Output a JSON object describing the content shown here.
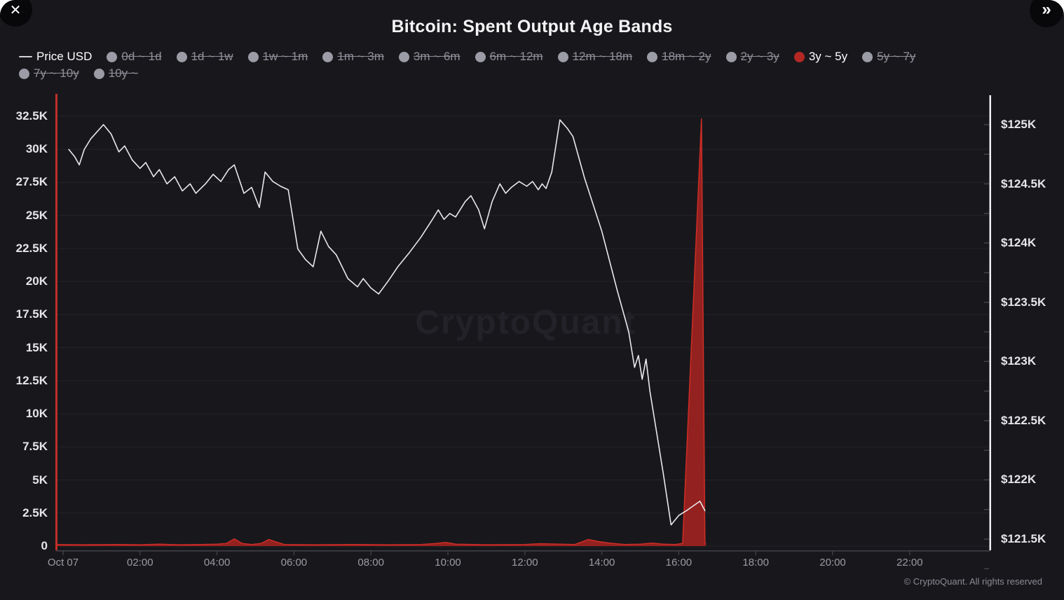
{
  "window": {
    "close_icon": "✕",
    "collapse_icon": "»"
  },
  "header": {
    "title": "Bitcoin: Spent Output Age Bands"
  },
  "legend": {
    "price": {
      "label": "Price USD",
      "active": true,
      "row": 1
    },
    "bands": [
      {
        "label": "0d ~ 1d",
        "active": false,
        "row": 1
      },
      {
        "label": "1d ~ 1w",
        "active": false,
        "row": 1
      },
      {
        "label": "1w ~ 1m",
        "active": false,
        "row": 1
      },
      {
        "label": "1m ~ 3m",
        "active": false,
        "row": 1
      },
      {
        "label": "3m ~ 6m",
        "active": false,
        "row": 1
      },
      {
        "label": "6m ~ 12m",
        "active": false,
        "row": 1
      },
      {
        "label": "12m ~ 18m",
        "active": false,
        "row": 1
      },
      {
        "label": "18m ~ 2y",
        "active": false,
        "row": 1
      },
      {
        "label": "2y ~ 3y",
        "active": false,
        "row": 1
      },
      {
        "label": "3y ~ 5y",
        "active": true,
        "row": 1
      },
      {
        "label": "5y ~ 7y",
        "active": false,
        "row": 1
      },
      {
        "label": "7y ~ 10y",
        "active": false,
        "row": 2
      },
      {
        "label": "10y ~",
        "active": false,
        "row": 2
      }
    ]
  },
  "colors": {
    "panel_bg": "#18181c",
    "accent_red": "#b32823",
    "area_fill": "#93211f",
    "area_stroke": "#cf2d26",
    "left_axis_line": "#c0302a",
    "right_axis_line": "#f2f2f4",
    "price_line": "#e9e9ec",
    "grid": "#232329",
    "tick": "#45454d",
    "x_axis_line": "#3f3f47"
  },
  "chart": {
    "watermark": "CryptoQuant",
    "copyright": "© CryptoQuant. All rights reserved",
    "left_axis": {
      "ticks": [
        {
          "value": 0,
          "label": "0"
        },
        {
          "value": 2.5,
          "label": "2.5K"
        },
        {
          "value": 5,
          "label": "5K"
        },
        {
          "value": 7.5,
          "label": "7.5K"
        },
        {
          "value": 10,
          "label": "10K"
        },
        {
          "value": 12.5,
          "label": "12.5K"
        },
        {
          "value": 15,
          "label": "15K"
        },
        {
          "value": 17.5,
          "label": "17.5K"
        },
        {
          "value": 20,
          "label": "20K"
        },
        {
          "value": 22.5,
          "label": "22.5K"
        },
        {
          "value": 25,
          "label": "25K"
        },
        {
          "value": 27.5,
          "label": "27.5K"
        },
        {
          "value": 30,
          "label": "30K"
        },
        {
          "value": 32.5,
          "label": "32.5K"
        }
      ]
    },
    "right_axis": {
      "ticks": [
        {
          "value": 121.5,
          "label": "$121.5K"
        },
        {
          "value": 122,
          "label": "$122K"
        },
        {
          "value": 122.5,
          "label": "$122.5K"
        },
        {
          "value": 123,
          "label": "$123K"
        },
        {
          "value": 123.5,
          "label": "$123.5K"
        },
        {
          "value": 124,
          "label": "$124K"
        },
        {
          "value": 124.5,
          "label": "$124.5K"
        },
        {
          "value": 125,
          "label": "$125K"
        }
      ]
    },
    "x_axis": {
      "ticks": [
        {
          "value": 0,
          "label": "Oct 07"
        },
        {
          "value": 2,
          "label": "02:00"
        },
        {
          "value": 4,
          "label": "04:00"
        },
        {
          "value": 6,
          "label": "06:00"
        },
        {
          "value": 8,
          "label": "08:00"
        },
        {
          "value": 10,
          "label": "10:00"
        },
        {
          "value": 12,
          "label": "12:00"
        },
        {
          "value": 14,
          "label": "14:00"
        },
        {
          "value": 16,
          "label": "16:00"
        },
        {
          "value": 18,
          "label": "18:00"
        },
        {
          "value": 20,
          "label": "20:00"
        },
        {
          "value": 22,
          "label": "22:00"
        }
      ]
    }
  },
  "chart_data": {
    "type": "mixed",
    "title": "Bitcoin: Spent Output Age Bands",
    "x_unit": "hours since Oct 07 00:00",
    "left_ylim": [
      0,
      32.5
    ],
    "left_unit": "K BTC spent output",
    "right_ylim": [
      121.25,
      125.25
    ],
    "right_unit": "$K",
    "grid": "horizontal",
    "legend_position": "top",
    "series": [
      {
        "name": "Price USD",
        "type": "line",
        "axis": "right",
        "points": [
          [
            0.15,
            124.79
          ],
          [
            0.3,
            124.73
          ],
          [
            0.42,
            124.66
          ],
          [
            0.55,
            124.79
          ],
          [
            0.72,
            124.88
          ],
          [
            1.05,
            125.0
          ],
          [
            1.25,
            124.92
          ],
          [
            1.45,
            124.77
          ],
          [
            1.6,
            124.82
          ],
          [
            1.8,
            124.7
          ],
          [
            2.0,
            124.63
          ],
          [
            2.15,
            124.68
          ],
          [
            2.35,
            124.56
          ],
          [
            2.5,
            124.62
          ],
          [
            2.7,
            124.5
          ],
          [
            2.9,
            124.56
          ],
          [
            3.1,
            124.44
          ],
          [
            3.3,
            124.5
          ],
          [
            3.45,
            124.42
          ],
          [
            3.7,
            124.5
          ],
          [
            3.9,
            124.58
          ],
          [
            4.1,
            124.52
          ],
          [
            4.3,
            124.62
          ],
          [
            4.45,
            124.66
          ],
          [
            4.7,
            124.42
          ],
          [
            4.9,
            124.47
          ],
          [
            5.1,
            124.3
          ],
          [
            5.25,
            124.6
          ],
          [
            5.45,
            124.52
          ],
          [
            5.65,
            124.48
          ],
          [
            5.85,
            124.45
          ],
          [
            6.1,
            123.95
          ],
          [
            6.3,
            123.86
          ],
          [
            6.5,
            123.8
          ],
          [
            6.7,
            124.1
          ],
          [
            6.9,
            123.97
          ],
          [
            7.1,
            123.9
          ],
          [
            7.4,
            123.7
          ],
          [
            7.65,
            123.63
          ],
          [
            7.8,
            123.7
          ],
          [
            8.0,
            123.62
          ],
          [
            8.2,
            123.57
          ],
          [
            8.45,
            123.68
          ],
          [
            8.7,
            123.8
          ],
          [
            9.0,
            123.92
          ],
          [
            9.3,
            124.05
          ],
          [
            9.6,
            124.2
          ],
          [
            9.75,
            124.28
          ],
          [
            9.9,
            124.2
          ],
          [
            10.05,
            124.25
          ],
          [
            10.2,
            124.22
          ],
          [
            10.45,
            124.35
          ],
          [
            10.6,
            124.4
          ],
          [
            10.8,
            124.28
          ],
          [
            10.95,
            124.12
          ],
          [
            11.15,
            124.35
          ],
          [
            11.35,
            124.5
          ],
          [
            11.5,
            124.42
          ],
          [
            11.65,
            124.47
          ],
          [
            11.85,
            124.52
          ],
          [
            12.05,
            124.48
          ],
          [
            12.2,
            124.52
          ],
          [
            12.35,
            124.45
          ],
          [
            12.45,
            124.5
          ],
          [
            12.55,
            124.46
          ],
          [
            12.7,
            124.6
          ],
          [
            12.91,
            125.04
          ],
          [
            13.1,
            124.97
          ],
          [
            13.25,
            124.9
          ],
          [
            13.55,
            124.55
          ],
          [
            14.0,
            124.1
          ],
          [
            14.4,
            123.6
          ],
          [
            14.7,
            123.25
          ],
          [
            14.85,
            122.95
          ],
          [
            14.95,
            123.05
          ],
          [
            15.05,
            122.85
          ],
          [
            15.15,
            123.02
          ],
          [
            15.25,
            122.75
          ],
          [
            15.45,
            122.35
          ],
          [
            15.6,
            122.05
          ],
          [
            15.8,
            121.62
          ],
          [
            16.0,
            121.7
          ],
          [
            16.2,
            121.74
          ],
          [
            16.55,
            121.82
          ],
          [
            16.68,
            121.74
          ]
        ]
      },
      {
        "name": "3y ~ 5y",
        "type": "area",
        "axis": "left",
        "points": [
          [
            -0.15,
            0.12
          ],
          [
            0.5,
            0.1
          ],
          [
            1.5,
            0.12
          ],
          [
            2.0,
            0.1
          ],
          [
            2.5,
            0.15
          ],
          [
            3.0,
            0.1
          ],
          [
            3.6,
            0.12
          ],
          [
            4.0,
            0.15
          ],
          [
            4.25,
            0.2
          ],
          [
            4.45,
            0.55
          ],
          [
            4.65,
            0.2
          ],
          [
            4.9,
            0.12
          ],
          [
            5.15,
            0.2
          ],
          [
            5.35,
            0.5
          ],
          [
            5.55,
            0.3
          ],
          [
            5.75,
            0.12
          ],
          [
            6.5,
            0.1
          ],
          [
            7.5,
            0.12
          ],
          [
            8.5,
            0.1
          ],
          [
            9.3,
            0.12
          ],
          [
            9.7,
            0.2
          ],
          [
            9.95,
            0.28
          ],
          [
            10.2,
            0.15
          ],
          [
            11.0,
            0.1
          ],
          [
            12.0,
            0.12
          ],
          [
            12.4,
            0.18
          ],
          [
            13.3,
            0.12
          ],
          [
            13.65,
            0.5
          ],
          [
            13.9,
            0.35
          ],
          [
            14.2,
            0.22
          ],
          [
            14.6,
            0.12
          ],
          [
            15.0,
            0.15
          ],
          [
            15.3,
            0.22
          ],
          [
            15.6,
            0.15
          ],
          [
            15.9,
            0.12
          ],
          [
            16.1,
            0.2
          ],
          [
            16.59,
            32.3
          ],
          [
            16.68,
            0.3
          ],
          [
            16.7,
            0.1
          ]
        ]
      }
    ]
  }
}
